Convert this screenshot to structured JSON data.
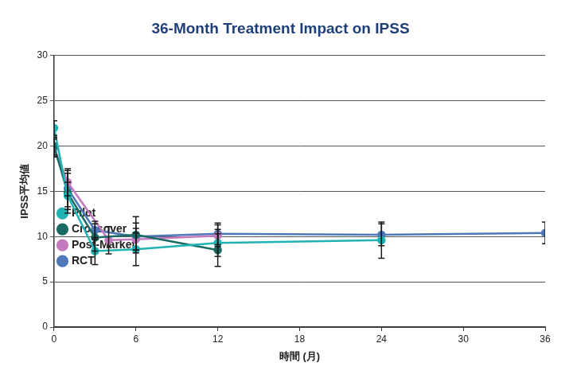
{
  "chart_data": {
    "type": "line",
    "title": "36-Month Treatment Impact on IPSS",
    "x_label": "時間 (月)",
    "y_label": "IPSS平均値",
    "xlim": [
      0,
      36
    ],
    "xticks": [
      0,
      6,
      12,
      18,
      24,
      30,
      36
    ],
    "ylim": [
      0,
      30
    ],
    "yticks": [
      0,
      5,
      10,
      15,
      20,
      25,
      30
    ],
    "grid": true,
    "legend": "upper right",
    "marker": "circle",
    "series": [
      {
        "name": "Pilot",
        "color": "#21b3b3",
        "x": [
          0,
          1,
          3,
          6,
          12,
          24
        ],
        "values": [
          22.0,
          14.5,
          8.4,
          8.6,
          9.3,
          9.6
        ],
        "errors": [
          0.8,
          1.5,
          1.5,
          1.8,
          1.5,
          2.0
        ]
      },
      {
        "name": "Crossover",
        "color": "#1b6b64",
        "x": [
          0,
          1,
          3,
          6,
          12
        ],
        "values": [
          20.0,
          14.8,
          9.9,
          10.2,
          8.5
        ],
        "errors": [
          1.0,
          2.2,
          1.5,
          2.0,
          1.8
        ]
      },
      {
        "name": "Post-Market",
        "color": "#c47abf",
        "x": [
          0,
          1,
          4,
          6,
          12
        ],
        "values": [
          19.8,
          16.0,
          9.6,
          9.7,
          10.1
        ],
        "errors": [
          1.0,
          1.5,
          1.5,
          1.2,
          1.2
        ]
      },
      {
        "name": "RCT",
        "color": "#4f78b8",
        "x": [
          0,
          1,
          3,
          6,
          12,
          24,
          36
        ],
        "values": [
          19.8,
          15.3,
          10.7,
          10.0,
          10.3,
          10.2,
          10.4
        ],
        "errors": [
          1.0,
          2.0,
          1.0,
          1.5,
          1.2,
          1.2,
          1.2
        ]
      }
    ]
  }
}
